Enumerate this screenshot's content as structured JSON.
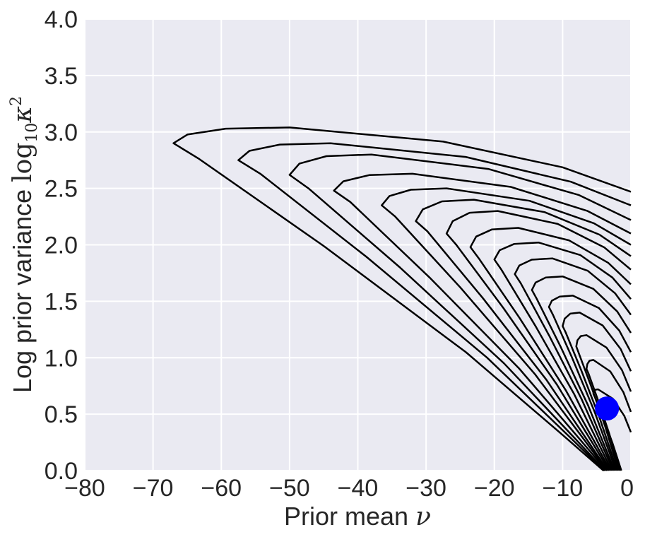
{
  "chart_data": {
    "type": "contour",
    "xlabel": "Prior mean",
    "xlabel_symbol": "ν",
    "ylabel": "Log prior variance",
    "ylabel_symbol": "log",
    "ylabel_subscript": "10",
    "ylabel_symbol2": "κ",
    "ylabel_superscript": "2",
    "xlim": [
      -80,
      0
    ],
    "ylim": [
      0.0,
      4.0
    ],
    "x_ticks": [
      -80,
      -70,
      -60,
      -50,
      -40,
      -30,
      -20,
      -10,
      0
    ],
    "x_tick_labels": [
      "−80",
      "−70",
      "−60",
      "−50",
      "−40",
      "−30",
      "−20",
      "−10",
      "0"
    ],
    "y_ticks": [
      0.0,
      0.5,
      1.0,
      1.5,
      2.0,
      2.5,
      3.0,
      3.5,
      4.0
    ],
    "y_tick_labels": [
      "0.0",
      "0.5",
      "1.0",
      "1.5",
      "2.0",
      "2.5",
      "3.0",
      "3.5",
      "4.0"
    ],
    "grid": true,
    "background": "#eaeaf2",
    "grid_color": "#ffffff",
    "line_color": "#000000",
    "marker_color": "#0000ff",
    "marker": {
      "x": -3.5,
      "y": 0.55
    },
    "contours": [
      {
        "tip": [
          -67,
          2.9
        ],
        "top_y": 3.04,
        "top_x": -50,
        "right_y": 2.47,
        "bottom_x": -4.0,
        "upper_tip_y": 2.76
      },
      {
        "tip": [
          -57.5,
          2.75
        ],
        "top_y": 2.9,
        "top_x": -44,
        "right_y": 2.35,
        "bottom_x": -3.9,
        "upper_tip_y": 2.63
      },
      {
        "tip": [
          -50,
          2.62
        ],
        "top_y": 2.8,
        "top_x": -38,
        "right_y": 2.22,
        "bottom_x": -3.8,
        "upper_tip_y": 2.5
      },
      {
        "tip": [
          -43.5,
          2.48
        ],
        "top_y": 2.63,
        "top_x": -32,
        "right_y": 2.1,
        "bottom_x": -3.6,
        "upper_tip_y": 2.38
      },
      {
        "tip": [
          -36.5,
          2.35
        ],
        "top_y": 2.5,
        "top_x": -27,
        "right_y": 2.0,
        "bottom_x": -3.5,
        "upper_tip_y": 2.25
      },
      {
        "tip": [
          -31.5,
          2.21
        ],
        "top_y": 2.4,
        "top_x": -23,
        "right_y": 1.9,
        "bottom_x": -3.4,
        "upper_tip_y": 2.12
      },
      {
        "tip": [
          -27,
          2.1
        ],
        "top_y": 2.3,
        "top_x": -19.5,
        "right_y": 1.78,
        "bottom_x": -3.2,
        "upper_tip_y": 2.0
      },
      {
        "tip": [
          -23.5,
          1.98
        ],
        "top_y": 2.15,
        "top_x": -16.5,
        "right_y": 1.65,
        "bottom_x": -3.0,
        "upper_tip_y": 1.88
      },
      {
        "tip": [
          -20,
          1.87
        ],
        "top_y": 2.02,
        "top_x": -13.5,
        "right_y": 1.52,
        "bottom_x": -2.8,
        "upper_tip_y": 1.78
      },
      {
        "tip": [
          -17,
          1.74
        ],
        "top_y": 1.88,
        "top_x": -11.5,
        "right_y": 1.38,
        "bottom_x": -2.6,
        "upper_tip_y": 1.66
      },
      {
        "tip": [
          -14.5,
          1.6
        ],
        "top_y": 1.72,
        "top_x": -10,
        "right_y": 1.22,
        "bottom_x": -2.4,
        "upper_tip_y": 1.52
      },
      {
        "tip": [
          -12,
          1.45
        ],
        "top_y": 1.55,
        "top_x": -8.5,
        "right_y": 1.05,
        "bottom_x": -2.2,
        "upper_tip_y": 1.38
      },
      {
        "tip": [
          -10,
          1.28
        ],
        "top_y": 1.4,
        "top_x": -7.5,
        "right_y": 0.88,
        "bottom_x": -2.0,
        "upper_tip_y": 1.22
      },
      {
        "tip": [
          -8,
          1.1
        ],
        "top_y": 1.2,
        "top_x": -6.5,
        "right_y": 0.7,
        "bottom_x": -1.8,
        "upper_tip_y": 1.04
      },
      {
        "tip": [
          -6.5,
          0.9
        ],
        "top_y": 0.98,
        "top_x": -5.5,
        "right_y": 0.52,
        "bottom_x": -1.6,
        "upper_tip_y": 0.86
      },
      {
        "tip": [
          -5.5,
          0.68
        ],
        "top_y": 0.72,
        "top_x": -4.8,
        "right_y": 0.34,
        "bottom_x": -1.4,
        "upper_tip_y": 0.65
      }
    ]
  }
}
